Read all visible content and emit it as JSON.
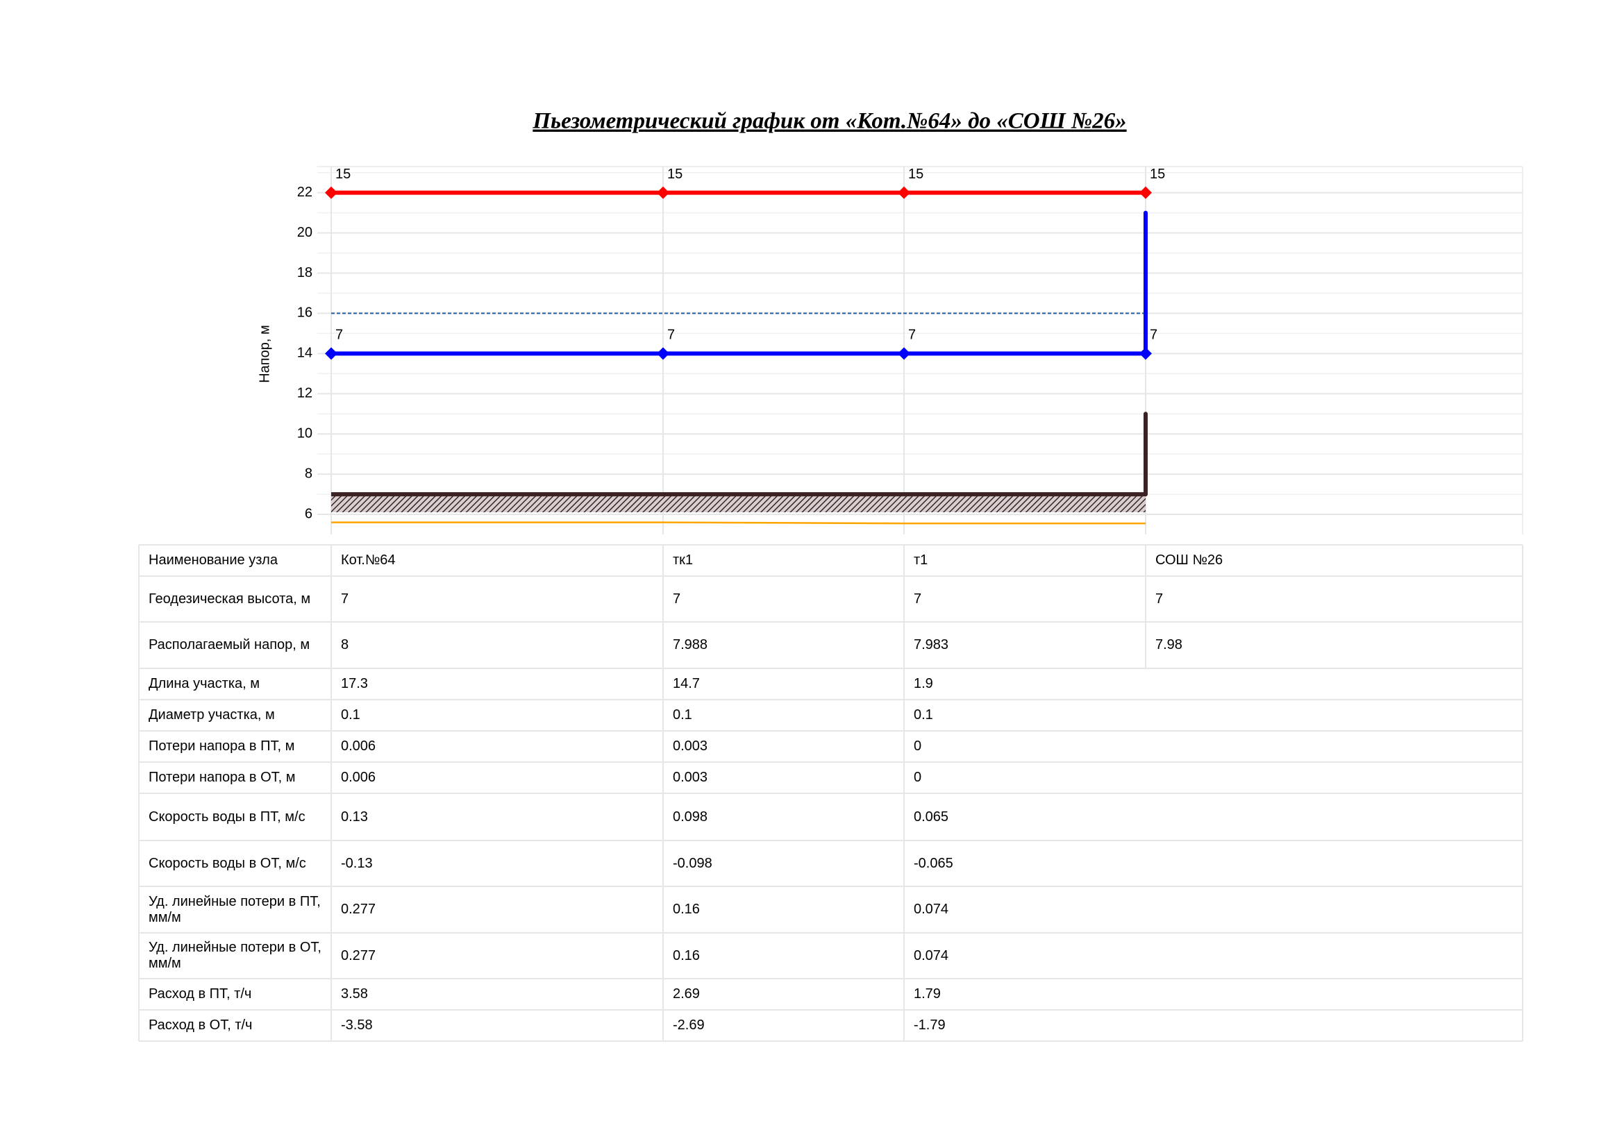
{
  "chart_data": {
    "type": "line",
    "title": "Пьезометрический график от «Кот.№64» до «СОШ №26»",
    "y_label": "Напор, м",
    "categories": [
      "Кот.№64",
      "тк1",
      "т1",
      "СОШ №26"
    ],
    "series": [
      {
        "color": "#ff0000",
        "values": [
          22,
          22,
          22,
          22
        ],
        "point_labels": [
          15,
          15,
          15,
          15
        ],
        "markers": true
      },
      {
        "color": "#0000ff",
        "values": [
          14,
          14,
          14,
          14
        ],
        "point_labels": [
          7,
          7,
          7,
          7
        ],
        "markers": true
      },
      {
        "color": "#3b2323",
        "values": [
          7,
          7,
          7,
          7
        ],
        "hatch": true
      },
      {
        "color": "#ffa500",
        "values": [
          5.6,
          5.6,
          5.55,
          5.55
        ]
      }
    ],
    "risers": [
      {
        "color": "#0000ff",
        "from": 14,
        "to": 21
      },
      {
        "color": "#3b2323",
        "from": 7,
        "to": 11
      }
    ],
    "static_level": {
      "value": 16,
      "color": "#1f5fa8"
    },
    "ylim": [
      5,
      23.3
    ],
    "yticks": [
      6,
      8,
      10,
      12,
      14,
      16,
      18,
      20,
      22
    ],
    "grid": true
  },
  "table": {
    "rows": [
      {
        "label": "Наименование узла"
      },
      {
        "label": "Геодезическая высота, м",
        "cells": [
          7,
          7,
          7,
          7
        ]
      },
      {
        "label": "Располагаемый напор, м",
        "cells": [
          8,
          7.988,
          7.983,
          7.98
        ]
      },
      {
        "label": "Длина участка, м",
        "cells": [
          17.3,
          14.7,
          1.9
        ]
      },
      {
        "label": "Диаметр участка, м",
        "cells": [
          0.1,
          0.1,
          0.1
        ]
      },
      {
        "label": "Потери напора в ПТ, м",
        "cells": [
          0.006,
          0.003,
          0
        ]
      },
      {
        "label": "Потери напора в ОТ, м",
        "cells": [
          0.006,
          0.003,
          0
        ]
      },
      {
        "label": "Скорость воды в ПТ, м/с",
        "cells": [
          0.13,
          0.098,
          0.065
        ]
      },
      {
        "label": "Скорость воды в ОТ, м/с",
        "cells": [
          -0.13,
          -0.098,
          -0.065
        ]
      },
      {
        "label": "Уд. линейные потери в ПТ, мм/м",
        "cells": [
          0.277,
          0.16,
          0.074
        ]
      },
      {
        "label": "Уд. линейные потери в ОТ, мм/м",
        "cells": [
          0.277,
          0.16,
          0.074
        ]
      },
      {
        "label": "Расход в ПТ, т/ч",
        "cells": [
          3.58,
          2.69,
          1.79
        ]
      },
      {
        "label": "Расход в ОТ, т/ч",
        "cells": [
          -3.58,
          -2.69,
          -1.79
        ]
      }
    ]
  }
}
